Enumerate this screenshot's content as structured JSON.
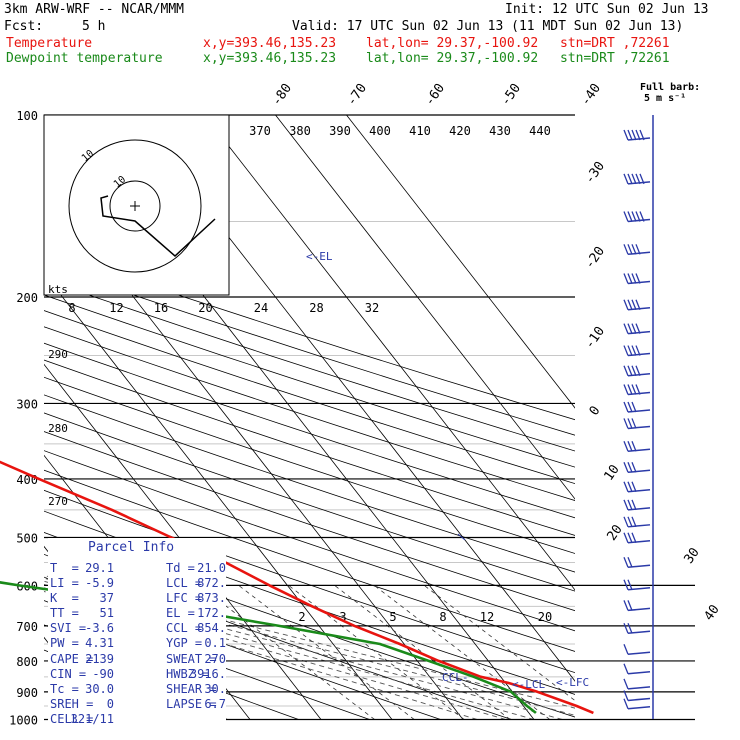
{
  "header": {
    "model": "3km ARW-WRF -- NCAR/MMM",
    "init": "Init: 12 UTC Sun 02 Jun 13",
    "fcst_label": "Fcst:",
    "fcst_value": "5 h",
    "valid": "Valid: 17 UTC Sun 02 Jun 13 (11 MDT Sun 02 Jun 13)",
    "line1": {
      "name": "Temperature",
      "xy": "x,y=393.46,135.23",
      "latlon": "lat,lon= 29.37,-100.92",
      "stn": "stn=DRT ,72261"
    },
    "line2": {
      "name": "Dewpoint temperature",
      "xy": "x,y=393.46,135.23",
      "latlon": "lat,lon= 29.37,-100.92",
      "stn": "stn=DRT ,72261"
    }
  },
  "colors": {
    "temperature": "#e8140f",
    "dewpoint": "#1a8a1a",
    "text_blue": "#2b3aa8",
    "header_red": "#e8140f",
    "header_green": "#1a8a1a"
  },
  "barb_legend": {
    "line1": "Full barb:",
    "line2": "5 m s⁻¹"
  },
  "hodograph": {
    "ring_label": "10",
    "outer_label": "10",
    "units": "kts"
  },
  "parcel_info": {
    "title": "Parcel Info",
    "rows": [
      [
        "T  =",
        "29.1",
        "Td =",
        "21.0"
      ],
      [
        "LI =",
        "-5.9",
        "LCL =",
        "872."
      ],
      [
        "K  =",
        "37",
        "LFC =",
        "873."
      ],
      [
        "TT =",
        "51",
        "EL =",
        "172."
      ],
      [
        "SVI =",
        "-3.6",
        "CCL =",
        "854."
      ],
      [
        "PW =",
        "4.31",
        "YGP =",
        "0.1"
      ],
      [
        "CAPE =",
        "2139",
        "SWEAT =",
        "270"
      ],
      [
        "CIN =",
        "-90",
        "HWBZ =",
        "3916."
      ],
      [
        "Tc =",
        "30.0",
        "SHEAR =",
        "30."
      ],
      [
        "SREH =",
        "0",
        "LAPSE =",
        "6.7"
      ],
      [
        "CELL =",
        "321/11",
        "",
        ""
      ]
    ]
  },
  "annotations": {
    "el": "<-EL",
    "ccl": "CCL-",
    "lcl": "<-LCL",
    "lfc": "<-LFC"
  },
  "chart_data": {
    "type": "line",
    "pressure_levels": [
      100,
      200,
      300,
      400,
      500,
      600,
      700,
      800,
      900,
      1000
    ],
    "temp_axis_labels": [
      -80,
      -70,
      -60,
      -50,
      -40,
      -30,
      -20,
      -10,
      0,
      10,
      20,
      30,
      40
    ],
    "theta_labels": [
      370,
      380,
      390,
      400,
      410,
      420,
      430,
      440
    ],
    "theta_low_labels": [
      290,
      280,
      270
    ],
    "mixing_ratio_labels": [
      2,
      3,
      5,
      8,
      12,
      20
    ],
    "hodo_speed_labels": [
      8,
      12,
      16,
      20,
      24,
      28,
      32
    ],
    "series": [
      {
        "name": "Temperature",
        "points": [
          [
            100,
            -80.2
          ],
          [
            110,
            -79.5
          ],
          [
            120,
            -76
          ],
          [
            140,
            -72
          ],
          [
            160,
            -68
          ],
          [
            180,
            -64.6
          ],
          [
            200,
            -60
          ],
          [
            250,
            -50.2
          ],
          [
            300,
            -41
          ],
          [
            350,
            -30.8
          ],
          [
            400,
            -23.3
          ],
          [
            450,
            -16.4
          ],
          [
            500,
            -11.1
          ],
          [
            550,
            -6.2
          ],
          [
            600,
            -2.5
          ],
          [
            650,
            1.2
          ],
          [
            700,
            5
          ],
          [
            750,
            9.4
          ],
          [
            800,
            13
          ],
          [
            850,
            17.2
          ],
          [
            870,
            20.4
          ],
          [
            900,
            23.5
          ],
          [
            950,
            27.5
          ],
          [
            975,
            29.1
          ]
        ]
      },
      {
        "name": "Dewpoint temperature",
        "points": [
          [
            100,
            -82.3
          ],
          [
            130,
            -92.4
          ],
          [
            160,
            -99.3
          ],
          [
            200,
            -103.3
          ],
          [
            250,
            -102.5
          ],
          [
            300,
            -96.3
          ],
          [
            350,
            -92.1
          ],
          [
            400,
            -89.4
          ],
          [
            430,
            -87.6
          ],
          [
            460,
            -66.2
          ],
          [
            500,
            -54.8
          ],
          [
            550,
            -45.8
          ],
          [
            580,
            -44.7
          ],
          [
            600,
            -37.8
          ],
          [
            650,
            -19.3
          ],
          [
            700,
            -5.6
          ],
          [
            750,
            6.6
          ],
          [
            800,
            11.6
          ],
          [
            850,
            16.2
          ],
          [
            900,
            19.8
          ],
          [
            950,
            20.5
          ],
          [
            975,
            21
          ]
        ]
      }
    ],
    "wind_barbs": [
      {
        "p": 110,
        "speed_ms": 25
      },
      {
        "p": 130,
        "speed_ms": 25
      },
      {
        "p": 150,
        "speed_ms": 25
      },
      {
        "p": 170,
        "speed_ms": 20
      },
      {
        "p": 190,
        "speed_ms": 20
      },
      {
        "p": 210,
        "speed_ms": 20
      },
      {
        "p": 230,
        "speed_ms": 20
      },
      {
        "p": 250,
        "speed_ms": 20
      },
      {
        "p": 270,
        "speed_ms": 20
      },
      {
        "p": 290,
        "speed_ms": 20
      },
      {
        "p": 310,
        "speed_ms": 15
      },
      {
        "p": 330,
        "speed_ms": 15
      },
      {
        "p": 360,
        "speed_ms": 15
      },
      {
        "p": 390,
        "speed_ms": 15
      },
      {
        "p": 420,
        "speed_ms": 15
      },
      {
        "p": 450,
        "speed_ms": 15
      },
      {
        "p": 480,
        "speed_ms": 15
      },
      {
        "p": 510,
        "speed_ms": 15
      },
      {
        "p": 560,
        "speed_ms": 10
      },
      {
        "p": 610,
        "speed_ms": 10
      },
      {
        "p": 660,
        "speed_ms": 10
      },
      {
        "p": 720,
        "speed_ms": 10
      },
      {
        "p": 780,
        "speed_ms": 5
      },
      {
        "p": 840,
        "speed_ms": 5
      },
      {
        "p": 890,
        "speed_ms": 5
      },
      {
        "p": 930,
        "speed_ms": 5
      },
      {
        "p": 960,
        "speed_ms": 5
      }
    ]
  }
}
